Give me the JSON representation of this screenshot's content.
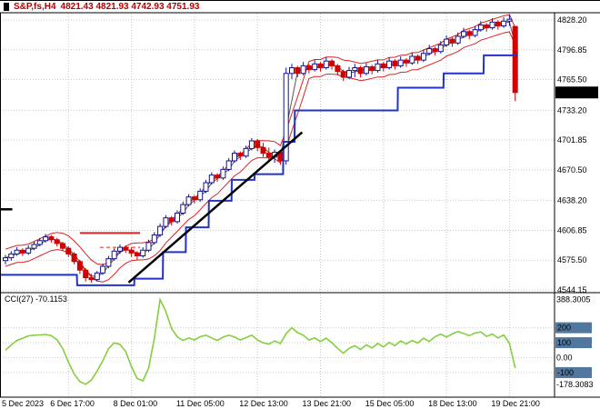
{
  "header": {
    "symbol_period": "S&P,fs,H4",
    "ohlc": "4821.43 4821.93 4742.93 4751.93"
  },
  "main": {
    "current_price": "4751.93",
    "price_axis": [
      "4828.20",
      "4796.85",
      "4765.50",
      "4733.20",
      "4701.85",
      "4670.50",
      "4638.20",
      "4606.85",
      "4575.50",
      "4544.15"
    ]
  },
  "cci": {
    "label": "CCI(27) -70.1153",
    "axis": [
      {
        "label": "388.3005",
        "value": 388.3005,
        "badge": false
      },
      {
        "label": "200",
        "value": 200,
        "badge": true
      },
      {
        "label": "100",
        "value": 100,
        "badge": true
      },
      {
        "label": "0.00",
        "value": 0,
        "badge": false
      },
      {
        "label": "-100",
        "value": -100,
        "badge": true
      },
      {
        "label": "-178.3083",
        "value": -178.3083,
        "badge": false
      }
    ]
  },
  "colors": {
    "title_text": "#b30000",
    "bull_border": "#14148c",
    "bull_fill": "#ffffff",
    "bear": "#d40000",
    "envelope": "#dd2222",
    "fast_ma": "#555555",
    "stop_line": "#2233cc",
    "trend_line": "#000000",
    "cci_line": "#84cf3c",
    "level_badge": "#51779e",
    "price_badge_bg": "#000000",
    "price_badge_text": "#ffffff",
    "grid": "#c9c9c9"
  },
  "chart_data": [
    {
      "type": "candlestick",
      "title": "S&P,fs,H4",
      "timeframe": "H4",
      "current_bar": {
        "open": 4821.43,
        "high": 4821.93,
        "low": 4742.93,
        "close": 4751.93
      },
      "ylim": [
        4544.15,
        4828.2
      ],
      "price_ticks": [
        4828.2,
        4796.85,
        4765.5,
        4733.2,
        4701.85,
        4670.5,
        4638.2,
        4606.85,
        4575.5,
        4544.15
      ],
      "time_labels": [
        {
          "text": "5 Dec 2023",
          "index": 0
        },
        {
          "text": "6 Dec 17:00",
          "index": 11
        },
        {
          "text": "8 Dec 01:00",
          "index": 22
        },
        {
          "text": "11 Dec 05:00",
          "index": 33
        },
        {
          "text": "12 Dec 13:00",
          "index": 44
        },
        {
          "text": "13 Dec 21:00",
          "index": 55
        },
        {
          "text": "15 Dec 05:00",
          "index": 66
        },
        {
          "text": "18 Dec 13:00",
          "index": 77
        },
        {
          "text": "19 Dec 21:00",
          "index": 88
        }
      ],
      "candles": [
        [
          4575,
          4581,
          4571,
          4578
        ],
        [
          4578,
          4585,
          4575,
          4582
        ],
        [
          4582,
          4589,
          4580,
          4586
        ],
        [
          4586,
          4588,
          4580,
          4583
        ],
        [
          4583,
          4591,
          4581,
          4588
        ],
        [
          4588,
          4595,
          4586,
          4592
        ],
        [
          4592,
          4599,
          4590,
          4596
        ],
        [
          4596,
          4603,
          4594,
          4600
        ],
        [
          4600,
          4602,
          4594,
          4597
        ],
        [
          4597,
          4599,
          4590,
          4593
        ],
        [
          4593,
          4595,
          4585,
          4588
        ],
        [
          4588,
          4590,
          4579,
          4582
        ],
        [
          4582,
          4584,
          4571,
          4574
        ],
        [
          4574,
          4576,
          4561,
          4565
        ],
        [
          4565,
          4567,
          4553,
          4557
        ],
        [
          4557,
          4561,
          4552,
          4555
        ],
        [
          4555,
          4564,
          4553,
          4562
        ],
        [
          4562,
          4572,
          4560,
          4569
        ],
        [
          4569,
          4580,
          4567,
          4577
        ],
        [
          4577,
          4588,
          4575,
          4585
        ],
        [
          4585,
          4592,
          4582,
          4589
        ],
        [
          4589,
          4591,
          4583,
          4586
        ],
        [
          4586,
          4589,
          4579,
          4583
        ],
        [
          4583,
          4585,
          4576,
          4580
        ],
        [
          4580,
          4589,
          4578,
          4586
        ],
        [
          4586,
          4597,
          4584,
          4594
        ],
        [
          4594,
          4605,
          4592,
          4602
        ],
        [
          4602,
          4614,
          4600,
          4611
        ],
        [
          4611,
          4623,
          4609,
          4620
        ],
        [
          4620,
          4622,
          4612,
          4616
        ],
        [
          4616,
          4628,
          4614,
          4625
        ],
        [
          4625,
          4637,
          4623,
          4634
        ],
        [
          4634,
          4645,
          4632,
          4642
        ],
        [
          4642,
          4644,
          4635,
          4639
        ],
        [
          4639,
          4651,
          4637,
          4648
        ],
        [
          4648,
          4660,
          4646,
          4657
        ],
        [
          4657,
          4668,
          4655,
          4665
        ],
        [
          4665,
          4667,
          4658,
          4662
        ],
        [
          4662,
          4674,
          4660,
          4671
        ],
        [
          4671,
          4683,
          4669,
          4680
        ],
        [
          4680,
          4691,
          4678,
          4688
        ],
        [
          4688,
          4690,
          4681,
          4685
        ],
        [
          4685,
          4696,
          4683,
          4693
        ],
        [
          4693,
          4704,
          4691,
          4701
        ],
        [
          4701,
          4703,
          4690,
          4694
        ],
        [
          4694,
          4699,
          4684,
          4688
        ],
        [
          4688,
          4694,
          4680,
          4684
        ],
        [
          4684,
          4692,
          4678,
          4689
        ],
        [
          4689,
          4691,
          4676,
          4680
        ],
        [
          4680,
          4778,
          4676,
          4772
        ],
        [
          4772,
          4782,
          4766,
          4778
        ],
        [
          4778,
          4780,
          4768,
          4772
        ],
        [
          4772,
          4784,
          4770,
          4780
        ],
        [
          4780,
          4782,
          4772,
          4776
        ],
        [
          4776,
          4786,
          4774,
          4782
        ],
        [
          4782,
          4784,
          4774,
          4778
        ],
        [
          4778,
          4789,
          4776,
          4785
        ],
        [
          4785,
          4787,
          4776,
          4780
        ],
        [
          4780,
          4782,
          4770,
          4774
        ],
        [
          4774,
          4776,
          4764,
          4768
        ],
        [
          4768,
          4779,
          4766,
          4775
        ],
        [
          4775,
          4782,
          4768,
          4778
        ],
        [
          4778,
          4780,
          4768,
          4772
        ],
        [
          4772,
          4783,
          4770,
          4779
        ],
        [
          4779,
          4781,
          4771,
          4775
        ],
        [
          4775,
          4786,
          4773,
          4782
        ],
        [
          4782,
          4784,
          4774,
          4778
        ],
        [
          4778,
          4789,
          4776,
          4785
        ],
        [
          4785,
          4787,
          4776,
          4780
        ],
        [
          4780,
          4790,
          4778,
          4786
        ],
        [
          4786,
          4788,
          4779,
          4783
        ],
        [
          4783,
          4794,
          4781,
          4790
        ],
        [
          4790,
          4792,
          4782,
          4786
        ],
        [
          4786,
          4797,
          4784,
          4793
        ],
        [
          4793,
          4802,
          4791,
          4798
        ],
        [
          4798,
          4800,
          4791,
          4795
        ],
        [
          4795,
          4806,
          4793,
          4802
        ],
        [
          4802,
          4812,
          4800,
          4808
        ],
        [
          4808,
          4810,
          4800,
          4804
        ],
        [
          4804,
          4815,
          4802,
          4811
        ],
        [
          4811,
          4820,
          4809,
          4816
        ],
        [
          4816,
          4818,
          4808,
          4812
        ],
        [
          4812,
          4822,
          4810,
          4818
        ],
        [
          4818,
          4827,
          4816,
          4823
        ],
        [
          4823,
          4825,
          4816,
          4820
        ],
        [
          4820,
          4830,
          4818,
          4826
        ],
        [
          4826,
          4828,
          4818,
          4822
        ],
        [
          4822,
          4831,
          4820,
          4827
        ],
        [
          4827,
          4834,
          4822,
          4829
        ],
        [
          4821.43,
          4821.93,
          4742.93,
          4751.93
        ]
      ],
      "overlays": {
        "blue_step_line": [
          [
            0,
            12,
            4560
          ],
          [
            13,
            22,
            4549
          ],
          [
            23,
            27,
            4556
          ],
          [
            28,
            31,
            4584
          ],
          [
            32,
            35,
            4610
          ],
          [
            36,
            39,
            4638
          ],
          [
            40,
            43,
            4660
          ],
          [
            44,
            48,
            4666
          ],
          [
            49,
            50,
            4700
          ],
          [
            51,
            68,
            4733
          ],
          [
            69,
            76,
            4757
          ],
          [
            77,
            83,
            4772
          ],
          [
            84,
            89,
            4791
          ]
        ],
        "envelope": {
          "period": 5,
          "offset": 9
        },
        "fast_ma_period": 3,
        "trendline": {
          "from_index": 21.5,
          "from_price": 4552,
          "to_index": 51.8,
          "to_price": 4710
        },
        "red_level_segments": [
          {
            "from_index": 13,
            "to_index": 23.5,
            "price": 4604,
            "dashed": false
          },
          {
            "from_index": 16.5,
            "to_index": 23.5,
            "price": 4589,
            "dashed": true
          }
        ],
        "black_level_segment": {
          "from_index": -1,
          "to_index": 1.2,
          "price": 4629
        }
      }
    },
    {
      "type": "line",
      "title": "CCI(27)",
      "current_value": -70.1153,
      "ylim": [
        -178.3083,
        388.3005
      ],
      "levels": [
        200,
        100,
        0,
        -100
      ],
      "values": [
        50,
        85,
        115,
        130,
        145,
        150,
        152,
        155,
        148,
        120,
        60,
        -30,
        -110,
        -160,
        -178.31,
        -150,
        -90,
        -20,
        60,
        100,
        88,
        40,
        -60,
        -140,
        -155,
        -70,
        130,
        388.3,
        310,
        195,
        140,
        115,
        132,
        118,
        140,
        150,
        132,
        115,
        138,
        150,
        138,
        118,
        134,
        150,
        118,
        100,
        90,
        112,
        95,
        160,
        200,
        168,
        150,
        118,
        132,
        108,
        130,
        100,
        62,
        30,
        62,
        80,
        55,
        85,
        65,
        95,
        72,
        102,
        80,
        112,
        92,
        115,
        98,
        130,
        108,
        140,
        158,
        138,
        158,
        175,
        162,
        148,
        165,
        172,
        142,
        158,
        132,
        152,
        95,
        -70.12
      ]
    }
  ]
}
